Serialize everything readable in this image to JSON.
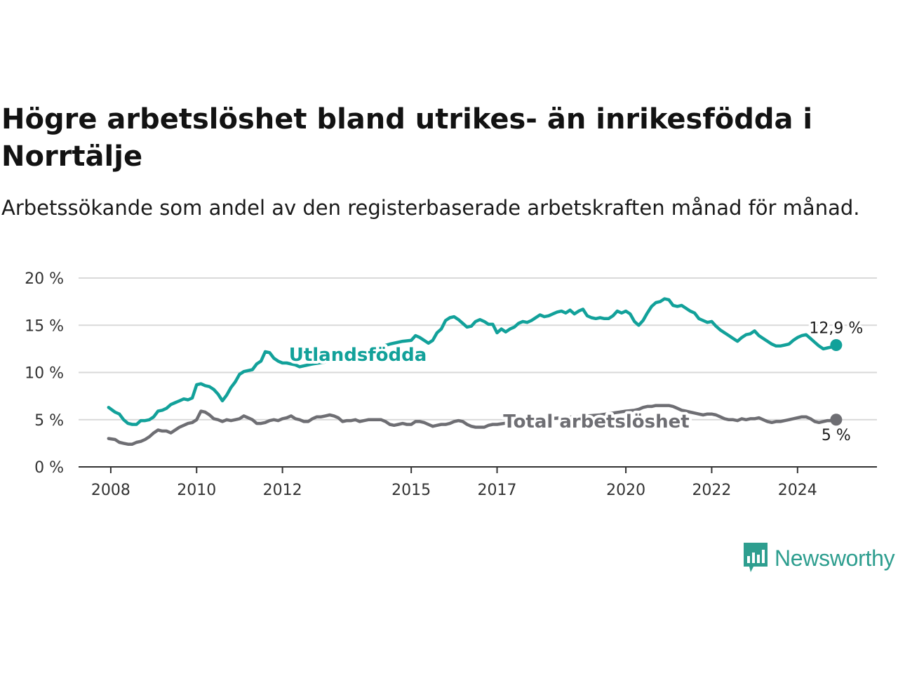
{
  "header": {
    "title": "Högre arbetslöshet bland utrikes- än inrikesfödda i Norrtälje",
    "subtitle": "Arbetssökande som andel av den registerbaserade arbetskraften månad för månad."
  },
  "brand": {
    "name": "Newsworthy",
    "color": "#2e9e8f",
    "icon": "newsworthy-chart-icon"
  },
  "chart_data": {
    "type": "line",
    "title": "Högre arbetslöshet bland utrikes- än inrikesfödda i Norrtälje",
    "subtitle": "Arbetssökande som andel av den registerbaserade arbetskraften månad för månad.",
    "ylim": [
      0,
      20
    ],
    "yticks": [
      0,
      5,
      10,
      15,
      20
    ],
    "ytick_labels": [
      "0 %",
      "5 %",
      "10 %",
      "15 %",
      "20 %"
    ],
    "xlim": [
      2007.25,
      2025.85
    ],
    "xticks": [
      2008,
      2010,
      2012,
      2015,
      2017,
      2020,
      2022,
      2024
    ],
    "xtick_labels": [
      "2008",
      "2010",
      "2012",
      "2015",
      "2017",
      "2020",
      "2022",
      "2024"
    ],
    "grid": "horizontal",
    "series": [
      {
        "name": "Utlandsfödda",
        "color": "#12a19a",
        "end_label": "12,9 %",
        "x": [
          2007.95,
          2008.1,
          2008.2,
          2008.3,
          2008.4,
          2008.5,
          2008.6,
          2008.7,
          2008.8,
          2008.9,
          2009.0,
          2009.1,
          2009.2,
          2009.3,
          2009.4,
          2009.5,
          2009.6,
          2009.7,
          2009.8,
          2009.9,
          2010.0,
          2010.1,
          2010.2,
          2010.3,
          2010.4,
          2010.5,
          2010.6,
          2010.7,
          2010.8,
          2010.9,
          2011.0,
          2011.1,
          2011.2,
          2011.3,
          2011.4,
          2011.5,
          2011.6,
          2011.7,
          2011.8,
          2011.9,
          2012.0,
          2012.1,
          2012.2,
          2012.3,
          2012.4,
          2012.5,
          2012.7,
          2013.0,
          2013.3,
          2013.6,
          2013.9,
          2014.2,
          2014.5,
          2014.8,
          2015.0,
          2015.1,
          2015.2,
          2015.3,
          2015.4,
          2015.5,
          2015.6,
          2015.7,
          2015.8,
          2015.9,
          2016.0,
          2016.1,
          2016.2,
          2016.3,
          2016.4,
          2016.5,
          2016.6,
          2016.7,
          2016.8,
          2016.9,
          2017.0,
          2017.1,
          2017.2,
          2017.3,
          2017.4,
          2017.5,
          2017.6,
          2017.7,
          2017.8,
          2017.9,
          2018.0,
          2018.1,
          2018.2,
          2018.3,
          2018.4,
          2018.5,
          2018.6,
          2018.7,
          2018.8,
          2018.9,
          2019.0,
          2019.1,
          2019.2,
          2019.3,
          2019.4,
          2019.5,
          2019.6,
          2019.7,
          2019.8,
          2019.9,
          2020.0,
          2020.1,
          2020.2,
          2020.3,
          2020.4,
          2020.5,
          2020.6,
          2020.7,
          2020.8,
          2020.9,
          2021.0,
          2021.1,
          2021.2,
          2021.3,
          2021.4,
          2021.5,
          2021.6,
          2021.7,
          2021.8,
          2021.9,
          2022.0,
          2022.1,
          2022.2,
          2022.3,
          2022.4,
          2022.5,
          2022.6,
          2022.7,
          2022.8,
          2022.9,
          2023.0,
          2023.1,
          2023.2,
          2023.3,
          2023.4,
          2023.5,
          2023.6,
          2023.7,
          2023.8,
          2023.9,
          2024.0,
          2024.1,
          2024.2,
          2024.3,
          2024.4,
          2024.5,
          2024.6,
          2024.7,
          2024.8,
          2024.9
        ],
        "y": [
          6.3,
          5.8,
          5.6,
          5.0,
          4.6,
          4.5,
          4.5,
          4.9,
          4.9,
          5.0,
          5.3,
          5.9,
          6.0,
          6.2,
          6.6,
          6.8,
          7.0,
          7.2,
          7.1,
          7.3,
          8.7,
          8.8,
          8.6,
          8.5,
          8.2,
          7.7,
          7.0,
          7.6,
          8.4,
          9.0,
          9.8,
          10.1,
          10.2,
          10.3,
          10.9,
          11.2,
          12.2,
          12.1,
          11.5,
          11.2,
          11.0,
          11.0,
          10.9,
          10.8,
          10.6,
          10.7,
          10.9,
          11.1,
          11.4,
          11.8,
          12.2,
          12.6,
          13.0,
          13.3,
          13.4,
          13.9,
          13.7,
          13.4,
          13.1,
          13.4,
          14.2,
          14.6,
          15.5,
          15.8,
          15.9,
          15.6,
          15.2,
          14.8,
          14.9,
          15.4,
          15.6,
          15.4,
          15.1,
          15.1,
          14.2,
          14.6,
          14.3,
          14.6,
          14.8,
          15.2,
          15.4,
          15.3,
          15.5,
          15.8,
          16.1,
          15.9,
          16.0,
          16.2,
          16.4,
          16.5,
          16.3,
          16.6,
          16.2,
          16.5,
          16.7,
          16.0,
          15.8,
          15.7,
          15.8,
          15.7,
          15.7,
          16.0,
          16.5,
          16.3,
          16.5,
          16.2,
          15.4,
          15.0,
          15.5,
          16.3,
          17.0,
          17.4,
          17.5,
          17.8,
          17.7,
          17.1,
          17.0,
          17.1,
          16.8,
          16.5,
          16.3,
          15.7,
          15.5,
          15.3,
          15.4,
          14.9,
          14.5,
          14.2,
          13.9,
          13.6,
          13.3,
          13.7,
          14.0,
          14.1,
          14.4,
          13.9,
          13.6,
          13.3,
          13.0,
          12.8,
          12.8,
          12.9,
          13.0,
          13.4,
          13.7,
          13.9,
          14.0,
          13.6,
          13.2,
          12.8,
          12.5,
          12.6,
          12.7,
          12.9
        ]
      },
      {
        "name": "Total arbetslöshet",
        "color": "#6e6e73",
        "end_label": "5 %",
        "x": [
          2007.95,
          2008.1,
          2008.2,
          2008.3,
          2008.4,
          2008.5,
          2008.6,
          2008.7,
          2008.8,
          2008.9,
          2009.0,
          2009.1,
          2009.2,
          2009.3,
          2009.4,
          2009.5,
          2009.6,
          2009.7,
          2009.8,
          2009.9,
          2010.0,
          2010.1,
          2010.2,
          2010.3,
          2010.4,
          2010.5,
          2010.6,
          2010.7,
          2010.8,
          2010.9,
          2011.0,
          2011.1,
          2011.2,
          2011.3,
          2011.4,
          2011.5,
          2011.6,
          2011.7,
          2011.8,
          2011.9,
          2012.0,
          2012.1,
          2012.2,
          2012.3,
          2012.4,
          2012.5,
          2012.6,
          2012.7,
          2012.8,
          2012.9,
          2013.0,
          2013.1,
          2013.2,
          2013.3,
          2013.4,
          2013.5,
          2013.6,
          2013.7,
          2013.8,
          2013.9,
          2014.0,
          2014.1,
          2014.2,
          2014.3,
          2014.4,
          2014.5,
          2014.6,
          2014.7,
          2014.8,
          2014.9,
          2015.0,
          2015.1,
          2015.2,
          2015.3,
          2015.4,
          2015.5,
          2015.6,
          2015.7,
          2015.8,
          2015.9,
          2016.0,
          2016.1,
          2016.2,
          2016.3,
          2016.4,
          2016.5,
          2016.6,
          2016.7,
          2016.8,
          2016.9,
          2017.0,
          2017.3,
          2017.6,
          2017.9,
          2018.2,
          2018.5,
          2018.8,
          2019.1,
          2019.4,
          2019.7,
          2020.0,
          2020.2,
          2020.3,
          2020.4,
          2020.5,
          2020.6,
          2020.7,
          2020.8,
          2020.9,
          2021.0,
          2021.1,
          2021.2,
          2021.3,
          2021.4,
          2021.5,
          2021.6,
          2021.7,
          2021.8,
          2021.9,
          2022.0,
          2022.1,
          2022.2,
          2022.3,
          2022.4,
          2022.5,
          2022.6,
          2022.7,
          2022.8,
          2022.9,
          2023.0,
          2023.1,
          2023.2,
          2023.3,
          2023.4,
          2023.5,
          2023.6,
          2023.7,
          2023.8,
          2023.9,
          2024.0,
          2024.1,
          2024.2,
          2024.3,
          2024.4,
          2024.5,
          2024.6,
          2024.7,
          2024.8,
          2024.9
        ],
        "y": [
          3.0,
          2.9,
          2.6,
          2.5,
          2.4,
          2.4,
          2.6,
          2.7,
          2.9,
          3.2,
          3.6,
          3.9,
          3.8,
          3.8,
          3.6,
          3.9,
          4.2,
          4.4,
          4.6,
          4.7,
          5.0,
          5.9,
          5.8,
          5.5,
          5.1,
          5.0,
          4.8,
          5.0,
          4.9,
          5.0,
          5.1,
          5.4,
          5.2,
          5.0,
          4.6,
          4.6,
          4.7,
          4.9,
          5.0,
          4.9,
          5.1,
          5.2,
          5.4,
          5.1,
          5.0,
          4.8,
          4.8,
          5.1,
          5.3,
          5.3,
          5.4,
          5.5,
          5.4,
          5.2,
          4.8,
          4.9,
          4.9,
          5.0,
          4.8,
          4.9,
          5.0,
          5.0,
          5.0,
          5.0,
          4.8,
          4.5,
          4.4,
          4.5,
          4.6,
          4.5,
          4.5,
          4.8,
          4.8,
          4.7,
          4.5,
          4.3,
          4.4,
          4.5,
          4.5,
          4.6,
          4.8,
          4.9,
          4.8,
          4.5,
          4.3,
          4.2,
          4.2,
          4.2,
          4.4,
          4.5,
          4.5,
          4.7,
          4.8,
          5.0,
          5.1,
          5.2,
          5.3,
          5.4,
          5.5,
          5.7,
          5.9,
          6.0,
          6.1,
          6.3,
          6.4,
          6.4,
          6.5,
          6.5,
          6.5,
          6.5,
          6.4,
          6.2,
          6.0,
          5.9,
          5.8,
          5.7,
          5.6,
          5.5,
          5.6,
          5.6,
          5.5,
          5.3,
          5.1,
          5.0,
          5.0,
          4.9,
          5.1,
          5.0,
          5.1,
          5.1,
          5.2,
          5.0,
          4.8,
          4.7,
          4.8,
          4.8,
          4.9,
          5.0,
          5.1,
          5.2,
          5.3,
          5.3,
          5.1,
          4.8,
          4.7,
          4.8,
          4.9,
          4.9,
          5.0
        ]
      }
    ]
  }
}
